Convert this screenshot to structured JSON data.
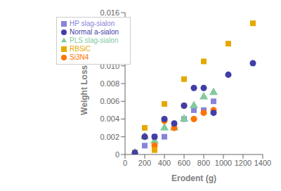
{
  "chart_data": {
    "type": "scatter",
    "title": "",
    "xlabel": "Erodent (g)",
    "ylabel": "Weight Loss (g)",
    "xlim": [
      0,
      1400
    ],
    "ylim": [
      0,
      0.016
    ],
    "xticks": [
      0,
      200,
      400,
      600,
      800,
      1000,
      1200,
      1400
    ],
    "yticks": [
      0,
      0.002,
      0.004,
      0.006,
      0.008,
      {
        "value": 0.01,
        "label": "0.010"
      },
      0.012,
      0.014,
      0.016
    ],
    "legend": "upper left",
    "series": [
      {
        "name": "HP slag-sialon",
        "color": "#8884d8",
        "marker": "square",
        "x": [
          100,
          200,
          300,
          400,
          500,
          600,
          700,
          800,
          900
        ],
        "values": [
          0.0002,
          0.001,
          0.002,
          0.002,
          0.0033,
          0.004,
          0.005,
          0.005,
          0.006
        ]
      },
      {
        "name": "PLS slag-sialon",
        "color": "#82ca9d",
        "marker": "triangle",
        "x": [
          100,
          200,
          300,
          400,
          500,
          600,
          700,
          800,
          900
        ],
        "values": [
          0.0002,
          0.002,
          0.0015,
          0.003,
          0.003,
          0.004,
          0.0055,
          0.0065,
          0.007
        ]
      },
      {
        "name": "Si3N4",
        "color": "#ff7300",
        "marker": "circle",
        "x": [
          100,
          200,
          300,
          400,
          500,
          600,
          700,
          800,
          900
        ],
        "values": [
          0.0001,
          0.002,
          0.001,
          0.0038,
          0.003,
          0.0055,
          0.004,
          0.0047,
          0.005
        ]
      },
      {
        "name": "RBSiC",
        "color": "#e6a800",
        "marker": "square",
        "x": [
          100,
          200,
          300,
          400,
          600,
          800,
          1050,
          1300
        ],
        "values": [
          0.0002,
          0.003,
          0.0005,
          0.0057,
          0.0085,
          0.0105,
          0.0125,
          0.0148
        ]
      },
      {
        "name": "Normal a-sialon",
        "color": "#413ea8",
        "marker": "circle",
        "x": [
          100,
          200,
          300,
          400,
          500,
          600,
          700,
          800,
          900,
          1050,
          1300
        ],
        "values": [
          0.0002,
          0.002,
          0.002,
          0.004,
          0.0035,
          0.0055,
          0.0075,
          0.0075,
          0.0047,
          0.009,
          0.0103
        ]
      }
    ]
  }
}
